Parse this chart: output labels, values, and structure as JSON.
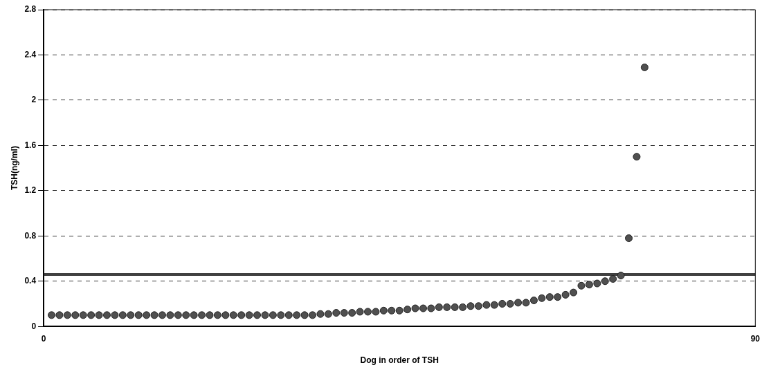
{
  "chart_data": {
    "type": "scatter",
    "xlabel": "Dog in order of TSH",
    "ylabel": "TSH(ng/ml)",
    "x": [
      1,
      2,
      3,
      4,
      5,
      6,
      7,
      8,
      9,
      10,
      11,
      12,
      13,
      14,
      15,
      16,
      17,
      18,
      19,
      20,
      21,
      22,
      23,
      24,
      25,
      26,
      27,
      28,
      29,
      30,
      31,
      32,
      33,
      34,
      35,
      36,
      37,
      38,
      39,
      40,
      41,
      42,
      43,
      44,
      45,
      46,
      47,
      48,
      49,
      50,
      51,
      52,
      53,
      54,
      55,
      56,
      57,
      58,
      59,
      60,
      61,
      62,
      63,
      64,
      65,
      66,
      67,
      68,
      69,
      70,
      71,
      72,
      73,
      74,
      75,
      76
    ],
    "series": [
      {
        "color": "#505050",
        "values": [
          0.1,
          0.1,
          0.1,
          0.1,
          0.1,
          0.1,
          0.1,
          0.1,
          0.1,
          0.1,
          0.1,
          0.1,
          0.1,
          0.1,
          0.1,
          0.1,
          0.1,
          0.1,
          0.1,
          0.1,
          0.1,
          0.1,
          0.1,
          0.1,
          0.1,
          0.1,
          0.1,
          0.1,
          0.1,
          0.1,
          0.1,
          0.1,
          0.1,
          0.1,
          0.11,
          0.11,
          0.12,
          0.12,
          0.12,
          0.13,
          0.13,
          0.13,
          0.14,
          0.14,
          0.14,
          0.15,
          0.16,
          0.16,
          0.16,
          0.17,
          0.17,
          0.17,
          0.17,
          0.18,
          0.18,
          0.19,
          0.19,
          0.2,
          0.2,
          0.21,
          0.21,
          0.23,
          0.25,
          0.26,
          0.26,
          0.28,
          0.3,
          0.36,
          0.37,
          0.38,
          0.4,
          0.42,
          0.45,
          0.78,
          1.5,
          2.29
        ]
      }
    ],
    "xlim": [
      0,
      90
    ],
    "xticks": [
      0,
      90
    ],
    "ylim": [
      0,
      2.8
    ],
    "yticks": [
      0,
      0.4,
      0.8,
      1.2,
      1.6,
      2,
      2.4,
      2.8
    ],
    "ref_lines": [
      {
        "axis": "y",
        "value": 0.46,
        "color": "#404040"
      }
    ],
    "grid": "y",
    "marker": "circle",
    "legend": false
  }
}
